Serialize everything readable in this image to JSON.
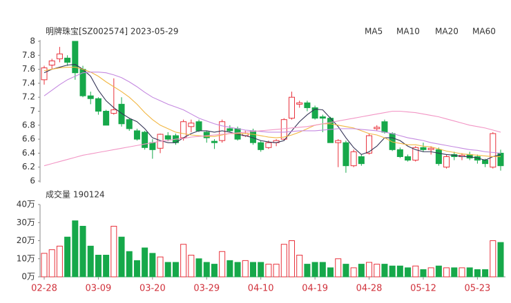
{
  "chart_data": [
    {
      "type": "candlestick",
      "title": "明牌珠宝[SZ002574] 2023-05-29",
      "up_color": "#e8303a",
      "down_color": "#16a84a",
      "open": [
        7.45,
        7.66,
        7.75,
        7.76,
        8.0,
        7.6,
        7.22,
        7.18,
        7.0,
        6.97,
        7.1,
        6.88,
        6.72,
        6.7,
        6.55,
        6.47,
        6.65,
        6.65,
        6.62,
        6.78,
        6.85,
        6.7,
        6.57,
        6.58,
        6.75,
        6.75,
        6.65,
        6.72,
        6.55,
        6.48,
        6.55,
        6.6,
        6.9,
        7.1,
        7.12,
        7.05,
        6.92,
        6.9,
        6.55,
        6.55,
        6.22,
        6.35,
        6.4,
        6.75,
        6.85,
        6.68,
        6.45,
        6.35,
        6.3,
        6.48,
        6.45,
        6.45,
        6.2,
        6.38,
        6.35,
        6.38,
        6.35,
        6.3,
        6.2,
        6.4
      ],
      "high": [
        7.65,
        7.75,
        7.92,
        7.8,
        8.0,
        7.65,
        7.28,
        7.2,
        7.02,
        7.47,
        7.2,
        6.9,
        6.75,
        6.72,
        6.6,
        6.68,
        6.7,
        6.68,
        6.88,
        6.88,
        6.88,
        6.72,
        6.6,
        6.88,
        6.8,
        6.78,
        6.72,
        6.75,
        6.58,
        6.58,
        6.6,
        6.9,
        7.28,
        7.15,
        7.15,
        7.08,
        6.95,
        6.92,
        6.6,
        6.58,
        6.45,
        6.38,
        6.68,
        6.8,
        6.88,
        6.7,
        6.48,
        6.38,
        6.5,
        6.55,
        6.5,
        6.48,
        6.38,
        6.42,
        6.4,
        6.42,
        6.38,
        6.32,
        6.7,
        6.45
      ],
      "low": [
        7.38,
        7.6,
        7.7,
        7.65,
        7.45,
        7.2,
        7.1,
        6.95,
        6.8,
        6.95,
        6.78,
        6.72,
        6.58,
        6.45,
        6.32,
        6.4,
        6.57,
        6.52,
        6.58,
        6.7,
        6.7,
        6.55,
        6.46,
        6.55,
        6.7,
        6.58,
        6.63,
        6.52,
        6.42,
        6.46,
        6.5,
        6.58,
        6.88,
        7.05,
        7.0,
        6.88,
        6.7,
        6.55,
        6.2,
        6.12,
        6.2,
        6.22,
        6.38,
        6.72,
        6.68,
        6.43,
        6.33,
        6.28,
        6.28,
        6.42,
        6.38,
        6.22,
        6.18,
        6.3,
        6.3,
        6.3,
        6.25,
        6.2,
        6.18,
        6.15
      ],
      "close": [
        7.62,
        7.72,
        7.82,
        7.7,
        7.55,
        7.22,
        7.18,
        7.0,
        6.8,
        7.02,
        6.82,
        6.75,
        6.6,
        6.48,
        6.45,
        6.67,
        6.6,
        6.55,
        6.85,
        6.83,
        6.72,
        6.62,
        6.55,
        6.85,
        6.72,
        6.6,
        6.68,
        6.55,
        6.45,
        6.55,
        6.58,
        6.88,
        7.2,
        7.12,
        7.05,
        6.9,
        6.9,
        6.55,
        6.58,
        6.22,
        6.42,
        6.25,
        6.65,
        6.77,
        6.7,
        6.45,
        6.35,
        6.3,
        6.48,
        6.45,
        6.47,
        6.25,
        6.35,
        6.35,
        6.37,
        6.33,
        6.3,
        6.25,
        6.68,
        6.22
      ],
      "series": [
        {
          "name": "MA5",
          "color": "#333355",
          "values": [
            7.55,
            7.6,
            7.63,
            7.66,
            7.67,
            7.6,
            7.5,
            7.3,
            7.15,
            7.05,
            6.97,
            6.9,
            6.85,
            6.75,
            6.62,
            6.58,
            6.55,
            6.55,
            6.62,
            6.68,
            6.72,
            6.72,
            6.7,
            6.72,
            6.7,
            6.67,
            6.65,
            6.62,
            6.58,
            6.56,
            6.55,
            6.58,
            6.72,
            6.85,
            6.95,
            7.03,
            7.02,
            6.9,
            6.78,
            6.62,
            6.48,
            6.38,
            6.42,
            6.5,
            6.62,
            6.62,
            6.58,
            6.5,
            6.45,
            6.42,
            6.42,
            6.4,
            6.38,
            6.37,
            6.35,
            6.35,
            6.33,
            6.3,
            6.35,
            6.38
          ]
        },
        {
          "name": "MA10",
          "color": "#f2b640",
          "values": [
            7.58,
            7.6,
            7.62,
            7.63,
            7.63,
            7.6,
            7.56,
            7.5,
            7.42,
            7.35,
            7.28,
            7.2,
            7.1,
            6.98,
            6.88,
            6.8,
            6.75,
            6.7,
            6.68,
            6.66,
            6.65,
            6.64,
            6.64,
            6.66,
            6.68,
            6.68,
            6.68,
            6.67,
            6.65,
            6.63,
            6.62,
            6.63,
            6.66,
            6.7,
            6.75,
            6.8,
            6.82,
            6.82,
            6.8,
            6.78,
            6.76,
            6.72,
            6.68,
            6.66,
            6.62,
            6.56,
            6.54,
            6.52,
            6.52,
            6.5,
            6.49,
            6.46,
            6.43,
            6.41,
            6.39,
            6.38,
            6.37,
            6.36,
            6.35,
            6.35
          ]
        },
        {
          "name": "MA20",
          "color": "#c488e0",
          "values": [
            7.22,
            7.3,
            7.38,
            7.45,
            7.5,
            7.55,
            7.56,
            7.56,
            7.55,
            7.52,
            7.48,
            7.42,
            7.35,
            7.27,
            7.2,
            7.15,
            7.1,
            7.06,
            7.02,
            6.96,
            6.9,
            6.86,
            6.82,
            6.79,
            6.77,
            6.75,
            6.73,
            6.72,
            6.71,
            6.7,
            6.7,
            6.7,
            6.71,
            6.72,
            6.72,
            6.72,
            6.73,
            6.74,
            6.75,
            6.75,
            6.75,
            6.74,
            6.73,
            6.72,
            6.7,
            6.68,
            6.65,
            6.62,
            6.6,
            6.58,
            6.55,
            6.53,
            6.51,
            6.49,
            6.47,
            6.45,
            6.44,
            6.42,
            6.41,
            6.4
          ]
        },
        {
          "name": "MA60",
          "color": "#f294c4",
          "values": [
            6.22,
            6.25,
            6.28,
            6.31,
            6.34,
            6.37,
            6.39,
            6.41,
            6.43,
            6.45,
            6.47,
            6.49,
            6.51,
            6.53,
            6.55,
            6.57,
            6.58,
            6.6,
            6.61,
            6.63,
            6.64,
            6.65,
            6.66,
            6.67,
            6.68,
            6.69,
            6.7,
            6.71,
            6.72,
            6.73,
            6.74,
            6.75,
            6.76,
            6.77,
            6.78,
            6.8,
            6.82,
            6.84,
            6.86,
            6.88,
            6.9,
            6.92,
            6.94,
            6.96,
            6.98,
            7.0,
            7.0,
            6.99,
            6.98,
            6.96,
            6.94,
            6.92,
            6.89,
            6.86,
            6.83,
            6.8,
            6.78,
            6.76,
            6.73,
            6.7
          ]
        }
      ],
      "ylim": [
        6,
        8
      ],
      "yticks": [
        6,
        6.2,
        6.4,
        6.6,
        6.8,
        7,
        7.2,
        7.4,
        7.6,
        7.8,
        8
      ]
    },
    {
      "type": "bar",
      "title": "成交量 190124",
      "categories": [
        "02-28",
        null,
        null,
        null,
        null,
        null,
        null,
        "03-09",
        null,
        null,
        null,
        null,
        null,
        null,
        "03-20",
        null,
        null,
        null,
        null,
        null,
        null,
        "03-29",
        null,
        null,
        null,
        null,
        null,
        null,
        "04-10",
        null,
        null,
        null,
        null,
        null,
        null,
        "04-19",
        null,
        null,
        null,
        null,
        null,
        null,
        "04-28",
        null,
        null,
        null,
        null,
        null,
        null,
        "05-12",
        null,
        null,
        null,
        null,
        null,
        null,
        "05-23",
        null,
        null,
        null
      ],
      "values": [
        13,
        15,
        17,
        22,
        31,
        28,
        17,
        12,
        12,
        28,
        22,
        14,
        9,
        16,
        13,
        11,
        8,
        8,
        18,
        12,
        10,
        8,
        7,
        14,
        9,
        8,
        9,
        8,
        8,
        7,
        7,
        18,
        20,
        12,
        7,
        8,
        8,
        5,
        10,
        7,
        5,
        7,
        8,
        7,
        7,
        6,
        6,
        5,
        6,
        4,
        5,
        6,
        5,
        5,
        5,
        5,
        4,
        4,
        20,
        19.0124
      ],
      "ylim": [
        0,
        40
      ],
      "yticks": [
        {
          "value": 0,
          "label": "0万"
        },
        {
          "value": 10,
          "label": "10万"
        },
        {
          "value": 20,
          "label": "20万"
        },
        {
          "value": 30,
          "label": "30万"
        },
        {
          "value": 40,
          "label": "40万"
        }
      ]
    }
  ]
}
